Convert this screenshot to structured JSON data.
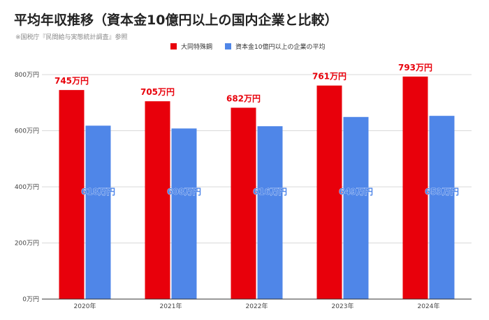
{
  "title": "平均年収推移（資本金10億円以上の国内企業と比較）",
  "source": "※国税庁『民間給与実態統計調査』参照",
  "colors": {
    "series_a": "#e8000b",
    "series_b": "#4f86e8",
    "grid": "#d9d9d9",
    "axis": "#333333"
  },
  "chart_data": {
    "type": "bar",
    "categories": [
      "2020年",
      "2021年",
      "2022年",
      "2023年",
      "2024年"
    ],
    "series": [
      {
        "name": "大同特殊鋼",
        "values": [
          745,
          705,
          682,
          761,
          793
        ],
        "labels": [
          "745万円",
          "705万円",
          "682万円",
          "761万円",
          "793万円"
        ]
      },
      {
        "name": "資本金10億円以上の企業の平均",
        "values": [
          618,
          608,
          616,
          649,
          653
        ],
        "labels": [
          "618万円",
          "608万円",
          "616万円",
          "649万円",
          "653万円"
        ]
      }
    ],
    "yticks": [
      0,
      200,
      400,
      600,
      800
    ],
    "ytick_labels": [
      "0万円",
      "200万円",
      "400万円",
      "600万円",
      "800万円"
    ],
    "ylim": [
      0,
      800
    ],
    "grid": true,
    "legend": "top"
  }
}
